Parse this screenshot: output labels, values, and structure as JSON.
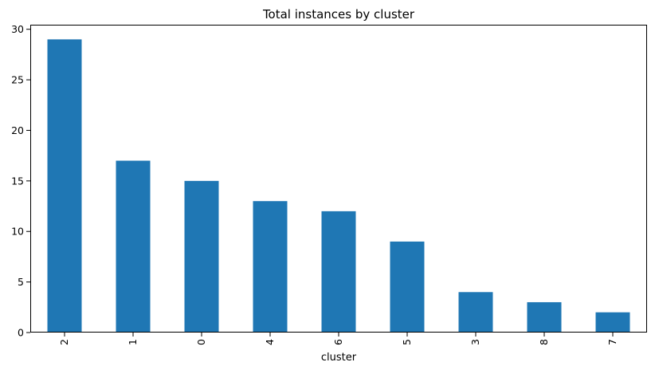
{
  "chart_data": {
    "type": "bar",
    "title": "Total instances by cluster",
    "xlabel": "cluster",
    "ylabel": "",
    "categories": [
      "2",
      "1",
      "0",
      "4",
      "6",
      "5",
      "3",
      "8",
      "7"
    ],
    "values": [
      29,
      17,
      15,
      13,
      12,
      9,
      4,
      3,
      2
    ],
    "ylim": [
      0,
      30.45
    ],
    "yticks": [
      0,
      5,
      10,
      15,
      20,
      25,
      30
    ],
    "grid": false,
    "legend": "none",
    "bar_color": "#1f77b4",
    "xtick_rotation": "vertical"
  }
}
